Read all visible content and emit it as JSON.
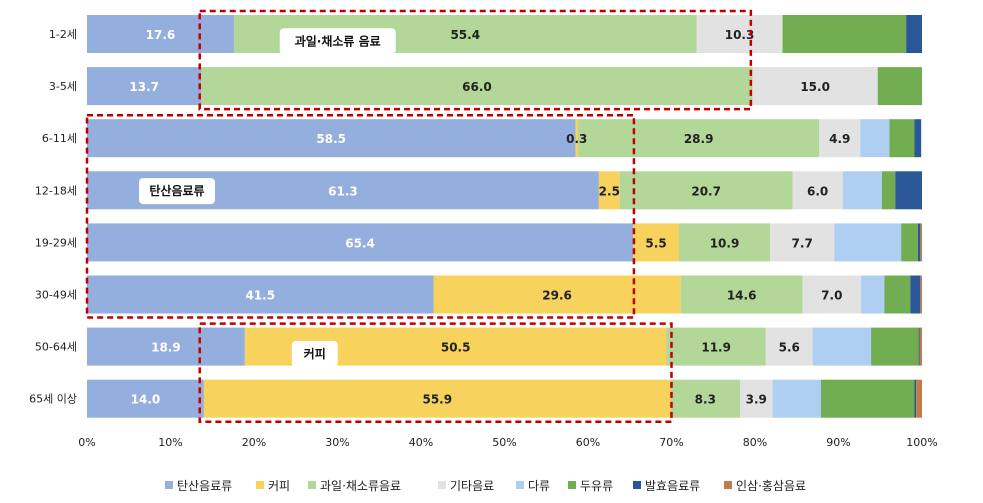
{
  "chart_data": {
    "type": "bar",
    "orientation": "horizontal",
    "stacked": true,
    "categories": [
      "1-2세",
      "3-5세",
      "6-11세",
      "12-18세",
      "19-29세",
      "30-49세",
      "50-64세",
      "65세 이상"
    ],
    "series": [
      {
        "name": "탄산음료류",
        "color": "#94aedd",
        "values": [
          17.6,
          13.7,
          58.5,
          61.3,
          65.4,
          41.5,
          18.9,
          14.0
        ]
      },
      {
        "name": "커피",
        "color": "#f7d25c",
        "values": [
          0,
          0,
          0.3,
          2.5,
          5.5,
          29.6,
          50.5,
          55.9
        ]
      },
      {
        "name": "과일·채소류음료",
        "color": "#b3d699",
        "values": [
          55.4,
          66.0,
          28.9,
          20.7,
          10.9,
          14.6,
          11.9,
          8.3
        ]
      },
      {
        "name": "기타음료",
        "color": "#e2e2e2",
        "values": [
          10.3,
          15.0,
          4.9,
          6.0,
          7.7,
          7.0,
          5.6,
          3.9
        ]
      },
      {
        "name": "다류",
        "color": "#aecff1",
        "values": [
          0,
          0,
          3.5,
          4.7,
          8.0,
          2.8,
          7.0,
          5.8
        ]
      },
      {
        "name": "두유류",
        "color": "#72ad52",
        "values": [
          14.8,
          5.3,
          3.0,
          1.6,
          2.0,
          3.1,
          5.7,
          11.2
        ]
      },
      {
        "name": "발효음료류",
        "color": "#2a5797",
        "values": [
          1.9,
          0,
          0.8,
          3.2,
          0.3,
          1.2,
          0.1,
          0.2
        ]
      },
      {
        "name": "인삼·홍삼음료",
        "color": "#c07d4a",
        "values": [
          0,
          0,
          0,
          0,
          0.2,
          0.2,
          0.3,
          0.7
        ]
      }
    ],
    "data_labels": [
      [
        {
          "s": 0,
          "text": "17.6"
        },
        {
          "s": 2,
          "text": "55.4"
        },
        {
          "s": 3,
          "text": "10.3"
        }
      ],
      [
        {
          "s": 0,
          "text": "13.7"
        },
        {
          "s": 2,
          "text": "66.0"
        },
        {
          "s": 3,
          "text": "15.0"
        }
      ],
      [
        {
          "s": 0,
          "text": "58.5"
        },
        {
          "s": 1,
          "text": "0.3"
        },
        {
          "s": 2,
          "text": "28.9"
        },
        {
          "s": 3,
          "text": "4.9"
        }
      ],
      [
        {
          "s": 0,
          "text": "61.3"
        },
        {
          "s": 1,
          "text": "2.5"
        },
        {
          "s": 2,
          "text": "20.7"
        },
        {
          "s": 3,
          "text": "6.0"
        }
      ],
      [
        {
          "s": 0,
          "text": "65.4"
        },
        {
          "s": 1,
          "text": "5.5"
        },
        {
          "s": 2,
          "text": "10.9"
        },
        {
          "s": 3,
          "text": "7.7"
        }
      ],
      [
        {
          "s": 0,
          "text": "41.5"
        },
        {
          "s": 1,
          "text": "29.6"
        },
        {
          "s": 2,
          "text": "14.6"
        },
        {
          "s": 3,
          "text": "7.0"
        }
      ],
      [
        {
          "s": 0,
          "text": "18.9"
        },
        {
          "s": 1,
          "text": "50.5"
        },
        {
          "s": 2,
          "text": "11.9"
        },
        {
          "s": 3,
          "text": "5.6"
        }
      ],
      [
        {
          "s": 0,
          "text": "14.0"
        },
        {
          "s": 1,
          "text": "55.9"
        },
        {
          "s": 2,
          "text": "8.3"
        },
        {
          "s": 3,
          "text": "3.9"
        }
      ]
    ],
    "x_ticks": [
      "0%",
      "10%",
      "20%",
      "30%",
      "40%",
      "50%",
      "60%",
      "70%",
      "80%",
      "90%",
      "100%"
    ],
    "xlim": [
      0,
      100
    ],
    "grid": false,
    "legend_position": "bottom",
    "callouts": [
      {
        "label": "과일·채소류 음료",
        "x_range": [
          13.5,
          79.5
        ],
        "rows": [
          0,
          1
        ]
      },
      {
        "label": "탄산음료류",
        "x_range": [
          0,
          65.5
        ],
        "rows": [
          2,
          5
        ]
      },
      {
        "label": "커피",
        "x_range": [
          13.5,
          70
        ],
        "rows": [
          6,
          7
        ]
      }
    ],
    "callout_color": "#c00000"
  }
}
